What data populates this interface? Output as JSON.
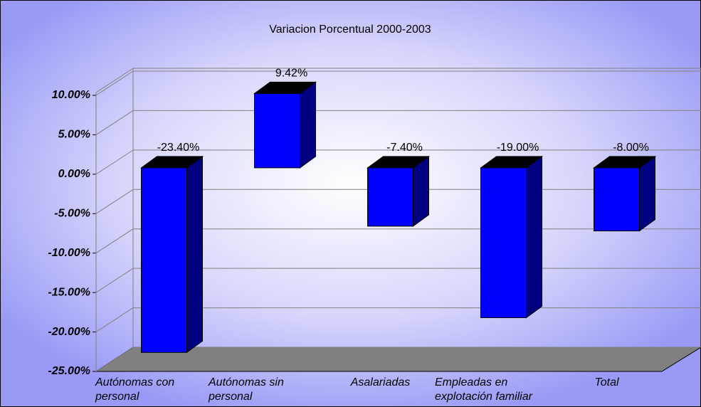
{
  "chart_data": {
    "type": "bar",
    "title": "Variacion Porcentual 2000-2003",
    "categories": [
      "Autónomas con personal",
      "Autónomas sin personal",
      "Asalariadas",
      "Empleadas en explotación familiar",
      "Total"
    ],
    "values": [
      -23.4,
      9.42,
      -7.4,
      -19.0,
      -8.0
    ],
    "value_labels": [
      "-23.40%",
      "9.42%",
      "-7.40%",
      "-19.00%",
      "-8.00%"
    ],
    "color": "#0000ff",
    "ylim": [
      -25,
      10
    ],
    "yticks": [
      {
        "value": -25,
        "label": "-25.00%"
      },
      {
        "value": -20,
        "label": "-20.00%"
      },
      {
        "value": -15,
        "label": "-15.00%"
      },
      {
        "value": -10,
        "label": "-10.00%"
      },
      {
        "value": -5,
        "label": "-5.00%"
      },
      {
        "value": 0,
        "label": "0.00%"
      },
      {
        "value": 5,
        "label": "5.00%"
      },
      {
        "value": 10,
        "label": "10.00%"
      }
    ],
    "grid": true
  }
}
